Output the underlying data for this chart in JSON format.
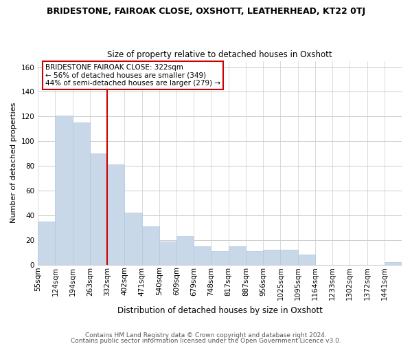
{
  "title": "BRIDESTONE, FAIROAK CLOSE, OXSHOTT, LEATHERHEAD, KT22 0TJ",
  "subtitle": "Size of property relative to detached houses in Oxshott",
  "xlabel": "Distribution of detached houses by size in Oxshott",
  "ylabel": "Number of detached properties",
  "bar_labels": [
    "55sqm",
    "124sqm",
    "194sqm",
    "263sqm",
    "332sqm",
    "402sqm",
    "471sqm",
    "540sqm",
    "609sqm",
    "679sqm",
    "748sqm",
    "817sqm",
    "887sqm",
    "956sqm",
    "1025sqm",
    "1095sqm",
    "1164sqm",
    "1233sqm",
    "1302sqm",
    "1372sqm",
    "1441sqm"
  ],
  "bar_values": [
    35,
    121,
    115,
    90,
    81,
    42,
    31,
    19,
    23,
    15,
    11,
    15,
    11,
    12,
    12,
    8,
    0,
    0,
    0,
    0,
    2
  ],
  "bar_color": "#c8d8e8",
  "bar_edge_color": "#b0c8e0",
  "vline_x_index": 4,
  "vline_color": "#cc0000",
  "annotation_title": "BRIDESTONE FAIROAK CLOSE: 322sqm",
  "annotation_line1": "← 56% of detached houses are smaller (349)",
  "annotation_line2": "44% of semi-detached houses are larger (279) →",
  "annotation_box_color": "#ffffff",
  "annotation_box_edge": "#cc0000",
  "ylim": [
    0,
    165
  ],
  "yticks": [
    0,
    20,
    40,
    60,
    80,
    100,
    120,
    140,
    160
  ],
  "footer1": "Contains HM Land Registry data © Crown copyright and database right 2024.",
  "footer2": "Contains public sector information licensed under the Open Government Licence v3.0.",
  "background_color": "#ffffff",
  "grid_color": "#cccccc",
  "title_fontsize": 9,
  "subtitle_fontsize": 8.5,
  "ylabel_fontsize": 8,
  "xlabel_fontsize": 8.5,
  "tick_fontsize": 7.5,
  "footer_fontsize": 6.5
}
